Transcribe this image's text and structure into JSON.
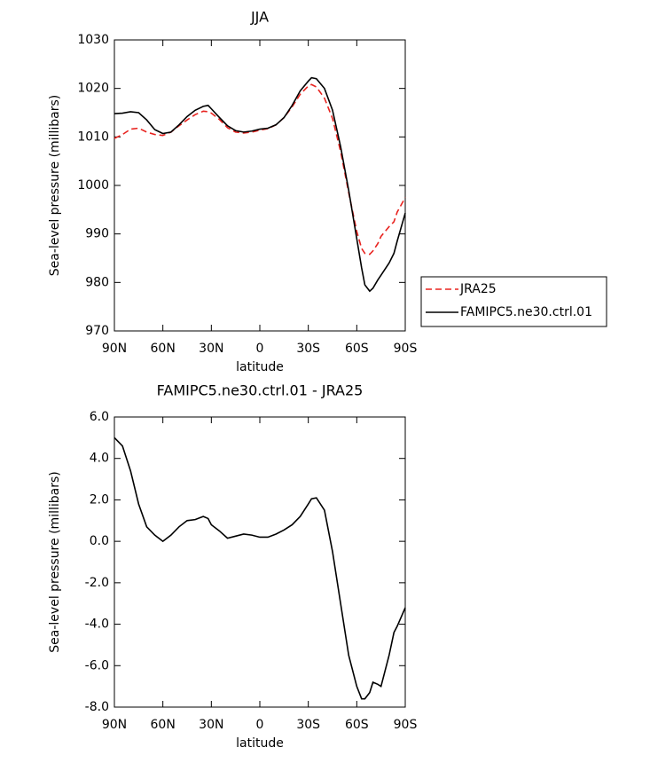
{
  "chart_data": [
    {
      "type": "line",
      "title": "JJA",
      "x_label": "latitude",
      "y_label": "Sea-level pressure (millibars)",
      "x": [
        90,
        85,
        80,
        75,
        70,
        65,
        60,
        55,
        50,
        45,
        40,
        35,
        32,
        30,
        25,
        20,
        15,
        10,
        5,
        0,
        -5,
        -10,
        -15,
        -20,
        -25,
        -30,
        -32,
        -35,
        -40,
        -45,
        -50,
        -55,
        -60,
        -63,
        -65,
        -68,
        -70,
        -73,
        -75,
        -80,
        -83,
        -85,
        -90
      ],
      "series": [
        {
          "name": "JRA25",
          "color": "#e8231f",
          "dashed": true,
          "values": [
            1009.7,
            1010.5,
            1011.6,
            1011.8,
            1011.0,
            1010.5,
            1010.3,
            1011.0,
            1012.3,
            1013.5,
            1014.6,
            1015.3,
            1015.2,
            1014.9,
            1013.6,
            1011.9,
            1011.0,
            1010.8,
            1011.0,
            1011.4,
            1011.7,
            1012.5,
            1014.0,
            1016.2,
            1018.8,
            1020.5,
            1020.8,
            1020.3,
            1018.0,
            1013.8,
            1007.0,
            998.5,
            990.5,
            987.0,
            986.0,
            985.8,
            986.5,
            988.0,
            989.5,
            991.5,
            992.5,
            994.5,
            997.5
          ]
        },
        {
          "name": "FAMIPC5.ne30.ctrl.01",
          "color": "#000000",
          "dashed": false,
          "values": [
            1014.8,
            1014.9,
            1015.2,
            1015.0,
            1013.5,
            1011.5,
            1010.7,
            1011.0,
            1012.5,
            1014.2,
            1015.5,
            1016.3,
            1016.5,
            1015.8,
            1014.0,
            1012.3,
            1011.3,
            1011.0,
            1011.2,
            1011.6,
            1011.8,
            1012.5,
            1014.0,
            1016.5,
            1019.5,
            1021.5,
            1022.2,
            1022.0,
            1020.0,
            1015.5,
            1008.0,
            999.0,
            989.0,
            983.0,
            979.5,
            978.2,
            978.8,
            980.5,
            981.5,
            984.0,
            986.0,
            988.5,
            994.3
          ]
        }
      ],
      "xlim": [
        90,
        -90
      ],
      "xticks": [
        {
          "value": 90,
          "label": "90N"
        },
        {
          "value": 60,
          "label": "60N"
        },
        {
          "value": 30,
          "label": "30N"
        },
        0,
        {
          "value": -30,
          "label": "30S"
        },
        {
          "value": -60,
          "label": "60S"
        },
        {
          "value": -90,
          "label": "90S"
        }
      ],
      "ylim": [
        970,
        1030
      ],
      "yticks": [
        970,
        980,
        990,
        1000,
        1010,
        1020,
        1030
      ],
      "grid": false,
      "legend": "right"
    },
    {
      "type": "line",
      "title": "FAMIPC5.ne30.ctrl.01 - JRA25",
      "x_label": "latitude",
      "y_label": "Sea-level pressure (millibars)",
      "x": [
        90,
        85,
        80,
        75,
        70,
        65,
        60,
        55,
        50,
        45,
        40,
        35,
        32,
        30,
        25,
        20,
        15,
        10,
        5,
        0,
        -5,
        -10,
        -15,
        -20,
        -25,
        -30,
        -32,
        -35,
        -40,
        -45,
        -50,
        -55,
        -60,
        -63,
        -65,
        -68,
        -70,
        -73,
        -75,
        -80,
        -83,
        -85,
        -90
      ],
      "values": [
        5.0,
        4.6,
        3.4,
        1.8,
        0.7,
        0.3,
        0.0,
        0.3,
        0.7,
        1.0,
        1.05,
        1.2,
        1.1,
        0.8,
        0.5,
        0.15,
        0.25,
        0.35,
        0.3,
        0.2,
        0.2,
        0.35,
        0.55,
        0.8,
        1.2,
        1.8,
        2.05,
        2.1,
        1.5,
        -0.5,
        -3.0,
        -5.5,
        -7.0,
        -7.6,
        -7.6,
        -7.3,
        -6.8,
        -6.9,
        -7.0,
        -5.5,
        -4.4,
        -4.1,
        -3.2
      ],
      "color": "#000000",
      "xlim": [
        90,
        -90
      ],
      "xticks": [
        {
          "value": 90,
          "label": "90N"
        },
        {
          "value": 60,
          "label": "60N"
        },
        {
          "value": 30,
          "label": "30N"
        },
        0,
        {
          "value": -30,
          "label": "30S"
        },
        {
          "value": -60,
          "label": "60S"
        },
        {
          "value": -90,
          "label": "90S"
        }
      ],
      "ylim": [
        -8,
        6
      ],
      "yticks": [
        {
          "value": -8,
          "label": "-8.0"
        },
        {
          "value": -6,
          "label": "-6.0"
        },
        {
          "value": -4,
          "label": "-4.0"
        },
        {
          "value": -2,
          "label": "-2.0"
        },
        {
          "value": 0,
          "label": "0.0"
        },
        {
          "value": 2,
          "label": "2.0"
        },
        {
          "value": 4,
          "label": "4.0"
        },
        {
          "value": 6,
          "label": "6.0"
        }
      ],
      "grid": false
    }
  ]
}
